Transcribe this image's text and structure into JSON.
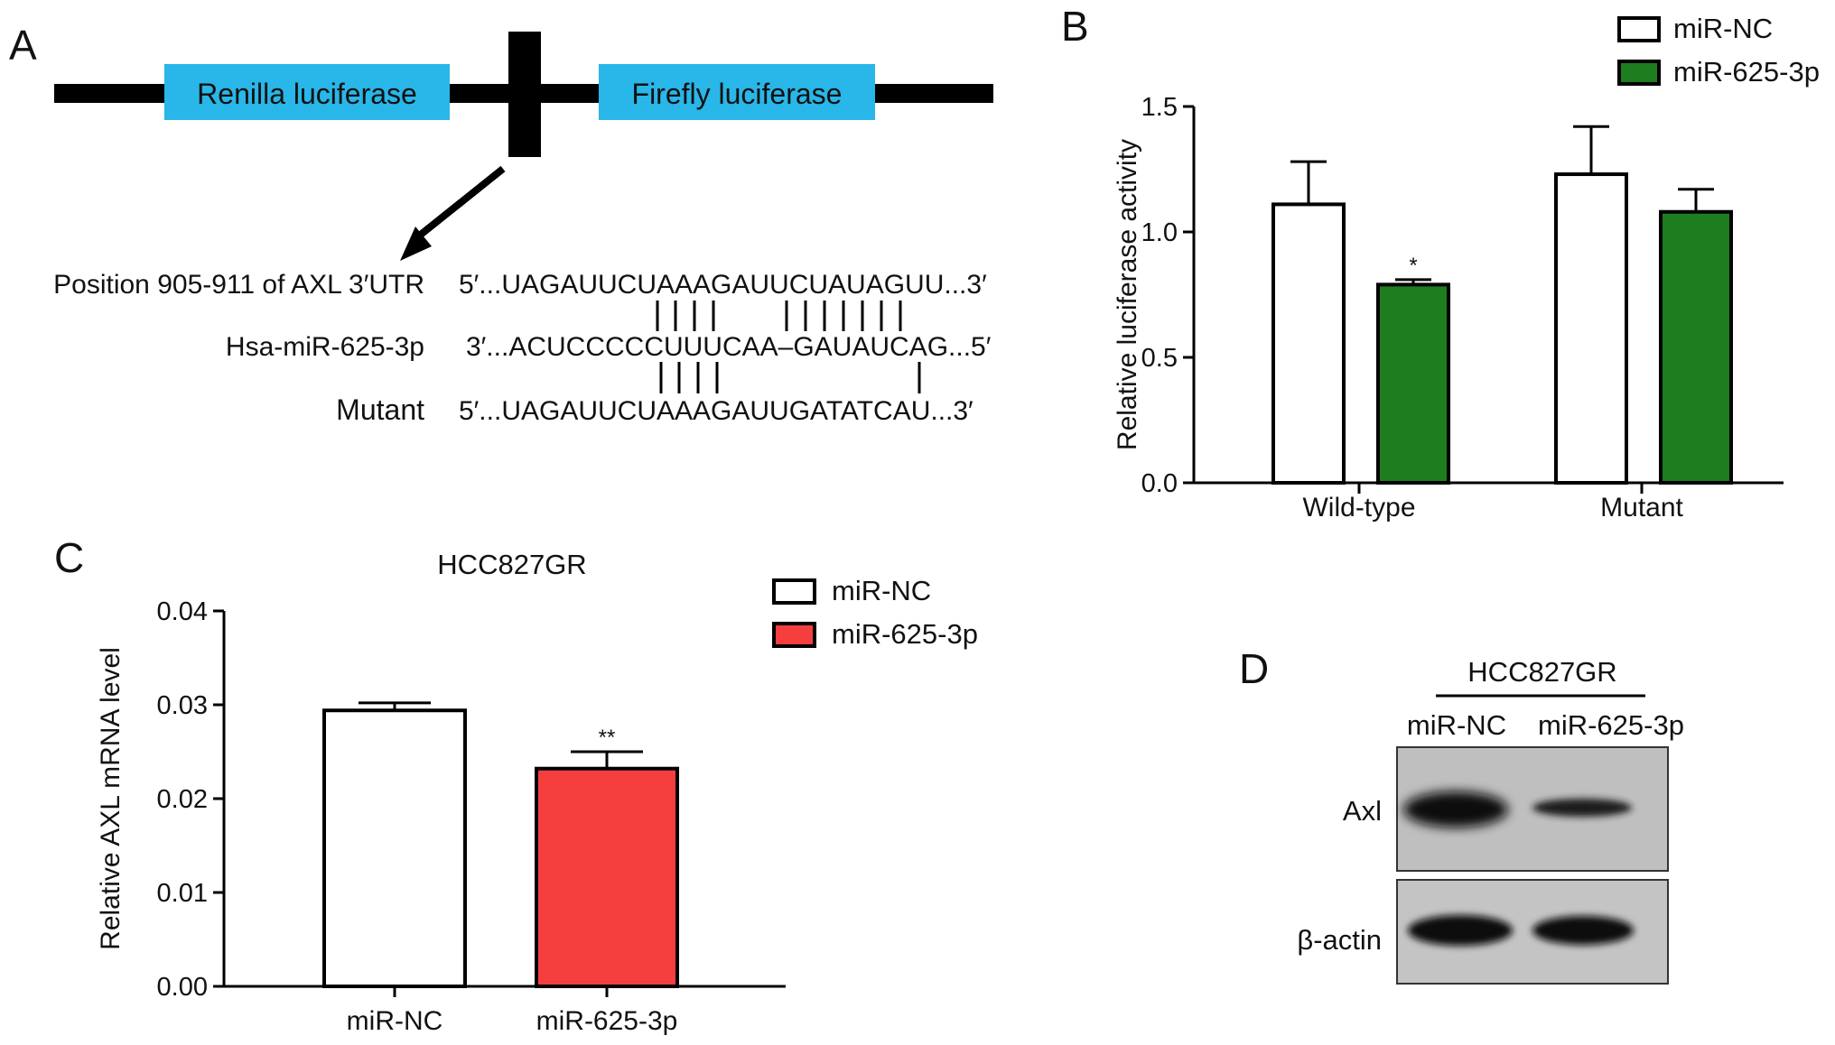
{
  "panels": {
    "a": {
      "letter": "A",
      "renilla_label": "Renilla luciferase",
      "firefly_label": "Firefly luciferase",
      "renilla_color": "#29b6e8",
      "firefly_color": "#29b6e8",
      "rows": [
        {
          "label": "Position 905-911 of AXL 3′UTR",
          "seq": "5′...UAGAUUCUAAAGAUUCUAUAGUU...3′"
        },
        {
          "label": "Hsa-miR-625-3p",
          "seq": "3′...ACUCCCCCUUUCAA–GAUAUCAG...5′"
        },
        {
          "label": "Mutant",
          "seq": "5′...UAGAUUCUAAAGAUUGATATCAU...3′"
        }
      ]
    },
    "b": {
      "letter": "B"
    },
    "c": {
      "letter": "C"
    },
    "d": {
      "letter": "D",
      "cell_line": "HCC827GR",
      "lanes": [
        "miR-NC",
        "miR-625-3p"
      ],
      "bands": [
        "Axl",
        "β-actin"
      ],
      "levels": {
        "Axl": [
          1.0,
          0.35
        ],
        "β-actin": [
          1.0,
          0.95
        ]
      }
    }
  },
  "chart_data": [
    {
      "type": "bar",
      "panel": "B",
      "title": "",
      "xlabel": "",
      "ylabel": "Relative luciferase activity",
      "categories": [
        "Wild-type",
        "Mutant"
      ],
      "ylim": [
        0,
        1.5
      ],
      "yticks": [
        "0.0",
        "0.5",
        "1.0",
        "1.5"
      ],
      "series": [
        {
          "name": "miR-NC",
          "values": [
            1.11,
            1.23
          ],
          "errors": [
            0.17,
            0.19
          ],
          "color": "#ffffff"
        },
        {
          "name": "miR-625-3p",
          "values": [
            0.79,
            1.08
          ],
          "errors": [
            0.02,
            0.09
          ],
          "color": "#1e7d1e"
        }
      ],
      "significance": [
        [
          "",
          "*"
        ],
        [
          "",
          ""
        ]
      ],
      "legend": "top-right",
      "grid": false
    },
    {
      "type": "bar",
      "panel": "C",
      "title": "HCC827GR",
      "xlabel": "",
      "ylabel": "Relative AXL mRNA level",
      "categories": [
        "miR-NC",
        "miR-625-3p"
      ],
      "values": [
        0.0294,
        0.0232
      ],
      "errors": [
        0.0008,
        0.0018
      ],
      "colors": [
        "#ffffff",
        "#f53f3f"
      ],
      "significance": [
        "",
        "**"
      ],
      "ylim": [
        0,
        0.04
      ],
      "yticks": [
        "0.00",
        "0.01",
        "0.02",
        "0.03",
        "0.04"
      ],
      "legend_entries": [
        "miR-NC",
        "miR-625-3p"
      ],
      "legend": "top-right",
      "grid": false
    }
  ]
}
